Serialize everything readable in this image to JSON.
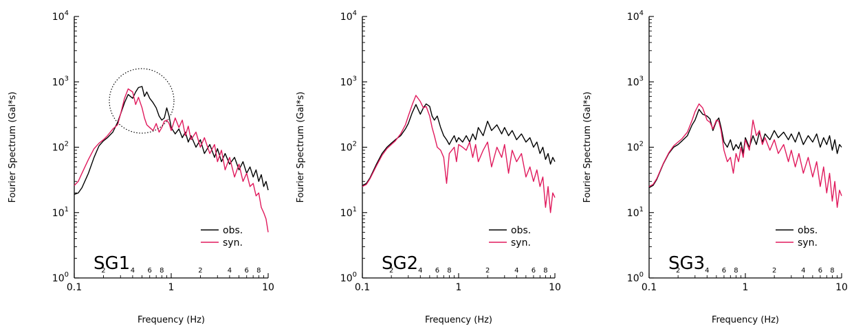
{
  "chart_data": [
    {
      "type": "line",
      "panel_label": "SG1",
      "xlabel": "Frequency (Hz)",
      "ylabel": "Fourier Spectrum (Gal*s)",
      "xscale": "log",
      "yscale": "log",
      "xlim": [
        0.1,
        10
      ],
      "ylim": [
        1,
        10000
      ],
      "x_tick_labels": [
        "0.1",
        "1",
        "10"
      ],
      "x_minor_tick_labels": [
        "2",
        "4",
        "6",
        "8",
        "2",
        "4",
        "6",
        "8"
      ],
      "y_tick_labels": [
        {
          "base": "10",
          "exp": "0"
        },
        {
          "base": "10",
          "exp": "1"
        },
        {
          "base": "10",
          "exp": "2"
        },
        {
          "base": "10",
          "exp": "3"
        },
        {
          "base": "10",
          "exp": "4"
        }
      ],
      "legend": {
        "position": "lower-right",
        "entries": [
          "obs.",
          "syn."
        ]
      },
      "annotation": "dotted circle highlighting peak near 0.3-0.8 Hz",
      "colors": {
        "obs.": "#000000",
        "syn.": "#e0195c"
      },
      "series": [
        {
          "name": "obs.",
          "x": [
            0.1,
            0.11,
            0.12,
            0.14,
            0.16,
            0.18,
            0.2,
            0.22,
            0.25,
            0.28,
            0.3,
            0.33,
            0.36,
            0.4,
            0.43,
            0.46,
            0.5,
            0.53,
            0.56,
            0.6,
            0.65,
            0.7,
            0.75,
            0.8,
            0.85,
            0.9,
            0.95,
            1.0,
            1.1,
            1.2,
            1.3,
            1.4,
            1.5,
            1.6,
            1.8,
            2.0,
            2.2,
            2.5,
            2.8,
            3.0,
            3.3,
            3.6,
            4.0,
            4.5,
            5.0,
            5.5,
            6.0,
            6.5,
            7.0,
            7.5,
            8.0,
            8.5,
            9.0,
            9.5,
            10.0
          ],
          "y": [
            19,
            20,
            24,
            40,
            70,
            105,
            125,
            140,
            170,
            240,
            320,
            480,
            640,
            560,
            700,
            820,
            850,
            600,
            700,
            560,
            480,
            400,
            300,
            260,
            280,
            400,
            300,
            200,
            160,
            190,
            140,
            170,
            120,
            150,
            100,
            130,
            80,
            110,
            70,
            95,
            60,
            80,
            55,
            70,
            45,
            60,
            40,
            50,
            35,
            45,
            30,
            38,
            25,
            30,
            22
          ]
        },
        {
          "name": "syn.",
          "x": [
            0.1,
            0.11,
            0.12,
            0.14,
            0.16,
            0.18,
            0.2,
            0.22,
            0.25,
            0.28,
            0.3,
            0.33,
            0.36,
            0.4,
            0.43,
            0.46,
            0.5,
            0.53,
            0.56,
            0.6,
            0.65,
            0.7,
            0.75,
            0.8,
            0.85,
            0.9,
            0.95,
            1.0,
            1.1,
            1.2,
            1.3,
            1.4,
            1.5,
            1.6,
            1.8,
            2.0,
            2.2,
            2.5,
            2.8,
            3.0,
            3.3,
            3.6,
            4.0,
            4.5,
            5.0,
            5.5,
            6.0,
            6.5,
            7.0,
            7.5,
            8.0,
            8.5,
            9.0,
            9.5,
            10.0
          ],
          "y": [
            26,
            30,
            40,
            65,
            95,
            115,
            130,
            150,
            190,
            220,
            320,
            560,
            780,
            700,
            450,
            580,
            400,
            280,
            220,
            200,
            180,
            230,
            170,
            200,
            250,
            260,
            230,
            180,
            280,
            200,
            260,
            150,
            210,
            130,
            170,
            100,
            140,
            80,
            110,
            60,
            90,
            45,
            70,
            35,
            55,
            30,
            40,
            25,
            28,
            18,
            20,
            12,
            10,
            8,
            5
          ]
        }
      ]
    },
    {
      "type": "line",
      "panel_label": "SG2",
      "xlabel": "Frequency (Hz)",
      "ylabel": "Fourier Spectrum (Gal*s)",
      "xscale": "log",
      "yscale": "log",
      "xlim": [
        0.1,
        10
      ],
      "ylim": [
        1,
        10000
      ],
      "x_tick_labels": [
        "0.1",
        "1",
        "10"
      ],
      "x_minor_tick_labels": [
        "2",
        "4",
        "6",
        "8",
        "2",
        "4",
        "6",
        "8"
      ],
      "y_tick_labels": [
        {
          "base": "10",
          "exp": "0"
        },
        {
          "base": "10",
          "exp": "1"
        },
        {
          "base": "10",
          "exp": "2"
        },
        {
          "base": "10",
          "exp": "3"
        },
        {
          "base": "10",
          "exp": "4"
        }
      ],
      "legend": {
        "position": "lower-right",
        "entries": [
          "obs.",
          "syn."
        ]
      },
      "colors": {
        "obs.": "#000000",
        "syn.": "#e0195c"
      },
      "series": [
        {
          "name": "obs.",
          "x": [
            0.1,
            0.11,
            0.12,
            0.14,
            0.16,
            0.18,
            0.2,
            0.22,
            0.25,
            0.28,
            0.3,
            0.33,
            0.36,
            0.4,
            0.43,
            0.46,
            0.5,
            0.53,
            0.56,
            0.6,
            0.65,
            0.7,
            0.75,
            0.8,
            0.85,
            0.9,
            0.95,
            1.0,
            1.1,
            1.2,
            1.3,
            1.4,
            1.5,
            1.6,
            1.8,
            2.0,
            2.2,
            2.5,
            2.8,
            3.0,
            3.3,
            3.6,
            4.0,
            4.5,
            5.0,
            5.5,
            6.0,
            6.5,
            7.0,
            7.5,
            8.0,
            8.5,
            9.0,
            9.5,
            10.0
          ],
          "y": [
            26,
            28,
            34,
            55,
            80,
            100,
            115,
            130,
            150,
            190,
            230,
            340,
            450,
            320,
            400,
            460,
            420,
            300,
            260,
            300,
            200,
            150,
            130,
            110,
            130,
            150,
            120,
            140,
            120,
            150,
            120,
            160,
            130,
            200,
            150,
            250,
            180,
            220,
            160,
            200,
            150,
            180,
            130,
            160,
            120,
            140,
            100,
            120,
            80,
            100,
            65,
            80,
            55,
            70,
            60
          ]
        },
        {
          "name": "syn.",
          "x": [
            0.1,
            0.11,
            0.12,
            0.14,
            0.16,
            0.18,
            0.2,
            0.22,
            0.25,
            0.28,
            0.3,
            0.33,
            0.36,
            0.4,
            0.43,
            0.46,
            0.5,
            0.53,
            0.56,
            0.6,
            0.65,
            0.7,
            0.75,
            0.8,
            0.85,
            0.9,
            0.95,
            1.0,
            1.1,
            1.2,
            1.3,
            1.4,
            1.5,
            1.6,
            1.8,
            2.0,
            2.2,
            2.5,
            2.8,
            3.0,
            3.3,
            3.6,
            4.0,
            4.5,
            5.0,
            5.5,
            6.0,
            6.5,
            7.0,
            7.5,
            8.0,
            8.5,
            9.0,
            9.5,
            10.0
          ],
          "y": [
            25,
            27,
            33,
            52,
            75,
            95,
            110,
            125,
            160,
            220,
            300,
            450,
            620,
            500,
            400,
            420,
            300,
            200,
            150,
            100,
            90,
            70,
            28,
            80,
            90,
            100,
            60,
            110,
            100,
            90,
            120,
            70,
            110,
            60,
            90,
            120,
            50,
            100,
            70,
            110,
            40,
            90,
            60,
            80,
            35,
            50,
            30,
            45,
            25,
            35,
            12,
            25,
            10,
            20,
            17
          ]
        }
      ]
    },
    {
      "type": "line",
      "panel_label": "SG3",
      "xlabel": "Frequency (Hz)",
      "ylabel": "Fourier Spectrum (Gal*s)",
      "xscale": "log",
      "yscale": "log",
      "xlim": [
        0.1,
        10
      ],
      "ylim": [
        1,
        10000
      ],
      "x_tick_labels": [
        "0.1",
        "1",
        "10"
      ],
      "x_minor_tick_labels": [
        "2",
        "4",
        "6",
        "8",
        "2",
        "4",
        "6",
        "8"
      ],
      "y_tick_labels": [
        {
          "base": "10",
          "exp": "0"
        },
        {
          "base": "10",
          "exp": "1"
        },
        {
          "base": "10",
          "exp": "2"
        },
        {
          "base": "10",
          "exp": "3"
        },
        {
          "base": "10",
          "exp": "4"
        }
      ],
      "legend": {
        "position": "lower-right",
        "entries": [
          "obs.",
          "syn."
        ]
      },
      "colors": {
        "obs.": "#000000",
        "syn.": "#e0195c"
      },
      "series": [
        {
          "name": "obs.",
          "x": [
            0.1,
            0.11,
            0.12,
            0.14,
            0.16,
            0.18,
            0.2,
            0.22,
            0.25,
            0.28,
            0.3,
            0.33,
            0.36,
            0.4,
            0.43,
            0.46,
            0.5,
            0.53,
            0.56,
            0.6,
            0.65,
            0.7,
            0.75,
            0.8,
            0.85,
            0.9,
            0.95,
            1.0,
            1.1,
            1.2,
            1.3,
            1.4,
            1.5,
            1.6,
            1.8,
            2.0,
            2.2,
            2.5,
            2.8,
            3.0,
            3.3,
            3.6,
            4.0,
            4.5,
            5.0,
            5.5,
            6.0,
            6.5,
            7.0,
            7.5,
            8.0,
            8.5,
            9.0,
            9.5,
            10.0
          ],
          "y": [
            24,
            26,
            32,
            55,
            80,
            100,
            110,
            125,
            150,
            220,
            260,
            380,
            320,
            300,
            270,
            180,
            250,
            280,
            200,
            120,
            100,
            130,
            90,
            110,
            95,
            120,
            80,
            140,
            100,
            150,
            110,
            170,
            120,
            160,
            130,
            180,
            140,
            170,
            130,
            160,
            120,
            170,
            110,
            150,
            120,
            160,
            100,
            140,
            110,
            150,
            90,
            130,
            80,
            110,
            100
          ]
        },
        {
          "name": "syn.",
          "x": [
            0.1,
            0.11,
            0.12,
            0.14,
            0.16,
            0.18,
            0.2,
            0.22,
            0.25,
            0.28,
            0.3,
            0.33,
            0.36,
            0.4,
            0.43,
            0.46,
            0.5,
            0.53,
            0.56,
            0.6,
            0.65,
            0.7,
            0.75,
            0.8,
            0.85,
            0.9,
            0.95,
            1.0,
            1.1,
            1.2,
            1.3,
            1.4,
            1.5,
            1.6,
            1.8,
            2.0,
            2.2,
            2.5,
            2.8,
            3.0,
            3.3,
            3.6,
            4.0,
            4.5,
            5.0,
            5.5,
            6.0,
            6.5,
            7.0,
            7.5,
            8.0,
            8.5,
            9.0,
            9.5,
            10.0
          ],
          "y": [
            25,
            27,
            33,
            56,
            82,
            105,
            120,
            135,
            170,
            260,
            350,
            460,
            400,
            260,
            240,
            190,
            260,
            250,
            180,
            90,
            60,
            70,
            40,
            80,
            60,
            100,
            70,
            130,
            90,
            260,
            150,
            180,
            110,
            140,
            90,
            130,
            80,
            110,
            60,
            90,
            50,
            80,
            40,
            70,
            35,
            60,
            25,
            50,
            20,
            40,
            15,
            30,
            12,
            22,
            18
          ]
        }
      ]
    }
  ]
}
